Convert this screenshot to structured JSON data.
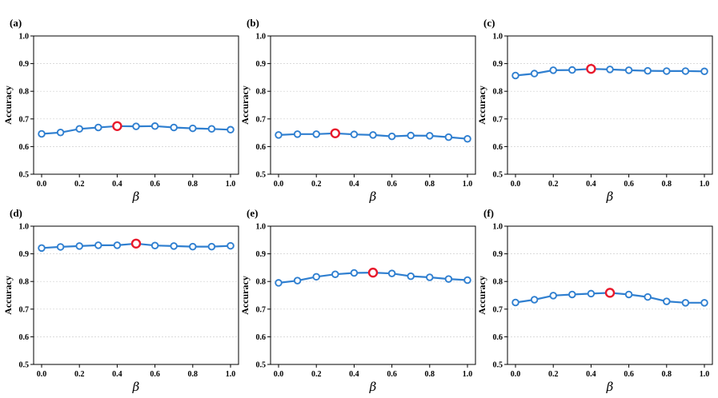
{
  "chart_data": [
    {
      "panel_label": "(a)",
      "type": "line",
      "xlabel": "β",
      "ylabel": "Accuracy",
      "ylim": [
        0.5,
        1.0
      ],
      "yticks": [
        "0.5",
        "0.6",
        "0.7",
        "0.8",
        "0.9",
        "1.0"
      ],
      "xticks": [
        "0.0",
        "0.2",
        "0.4",
        "0.6",
        "0.8",
        "1.0"
      ],
      "x": [
        0.0,
        0.1,
        0.2,
        0.3,
        0.4,
        0.5,
        0.6,
        0.7,
        0.8,
        0.9,
        1.0
      ],
      "values": [
        0.646,
        0.651,
        0.664,
        0.669,
        0.674,
        0.673,
        0.674,
        0.669,
        0.666,
        0.664,
        0.661
      ],
      "best_index": 4,
      "grid": "horizontal dotted"
    },
    {
      "panel_label": "(b)",
      "type": "line",
      "xlabel": "β",
      "ylabel": "Accuracy",
      "ylim": [
        0.5,
        1.0
      ],
      "yticks": [
        "0.5",
        "0.6",
        "0.7",
        "0.8",
        "0.9",
        "1.0"
      ],
      "xticks": [
        "0.0",
        "0.2",
        "0.4",
        "0.6",
        "0.8",
        "1.0"
      ],
      "x": [
        0.0,
        0.1,
        0.2,
        0.3,
        0.4,
        0.5,
        0.6,
        0.7,
        0.8,
        0.9,
        1.0
      ],
      "values": [
        0.642,
        0.645,
        0.645,
        0.648,
        0.644,
        0.642,
        0.637,
        0.64,
        0.639,
        0.634,
        0.628
      ],
      "best_index": 3,
      "grid": "horizontal dotted"
    },
    {
      "panel_label": "(c)",
      "type": "line",
      "xlabel": "β",
      "ylabel": "Accuracy",
      "ylim": [
        0.5,
        1.0
      ],
      "yticks": [
        "0.5",
        "0.6",
        "0.7",
        "0.8",
        "0.9",
        "1.0"
      ],
      "xticks": [
        "0.0",
        "0.2",
        "0.4",
        "0.6",
        "0.8",
        "1.0"
      ],
      "x": [
        0.0,
        0.1,
        0.2,
        0.3,
        0.4,
        0.5,
        0.6,
        0.7,
        0.8,
        0.9,
        1.0
      ],
      "values": [
        0.857,
        0.864,
        0.876,
        0.877,
        0.881,
        0.879,
        0.876,
        0.874,
        0.873,
        0.873,
        0.872
      ],
      "best_index": 4,
      "grid": "horizontal dotted"
    },
    {
      "panel_label": "(d)",
      "type": "line",
      "xlabel": "β",
      "ylabel": "Accuracy",
      "ylim": [
        0.5,
        1.0
      ],
      "yticks": [
        "0.5",
        "0.6",
        "0.7",
        "0.8",
        "0.9",
        "1.0"
      ],
      "xticks": [
        "0.0",
        "0.2",
        "0.4",
        "0.6",
        "0.8",
        "1.0"
      ],
      "x": [
        0.0,
        0.1,
        0.2,
        0.3,
        0.4,
        0.5,
        0.6,
        0.7,
        0.8,
        0.9,
        1.0
      ],
      "values": [
        0.921,
        0.925,
        0.928,
        0.931,
        0.931,
        0.937,
        0.93,
        0.928,
        0.926,
        0.926,
        0.929
      ],
      "best_index": 5,
      "grid": "horizontal dotted"
    },
    {
      "panel_label": "(e)",
      "type": "line",
      "xlabel": "β",
      "ylabel": "Accuracy",
      "ylim": [
        0.5,
        1.0
      ],
      "yticks": [
        "0.5",
        "0.6",
        "0.7",
        "0.8",
        "0.9",
        "1.0"
      ],
      "xticks": [
        "0.0",
        "0.2",
        "0.4",
        "0.6",
        "0.8",
        "1.0"
      ],
      "x": [
        0.0,
        0.1,
        0.2,
        0.3,
        0.4,
        0.5,
        0.6,
        0.7,
        0.8,
        0.9,
        1.0
      ],
      "values": [
        0.795,
        0.803,
        0.817,
        0.826,
        0.831,
        0.832,
        0.829,
        0.819,
        0.815,
        0.809,
        0.805
      ],
      "best_index": 5,
      "grid": "horizontal dotted"
    },
    {
      "panel_label": "(f)",
      "type": "line",
      "xlabel": "β",
      "ylabel": "Accuracy",
      "ylim": [
        0.5,
        1.0
      ],
      "yticks": [
        "0.5",
        "0.6",
        "0.7",
        "0.8",
        "0.9",
        "1.0"
      ],
      "xticks": [
        "0.0",
        "0.2",
        "0.4",
        "0.6",
        "0.8",
        "1.0"
      ],
      "x": [
        0.0,
        0.1,
        0.2,
        0.3,
        0.4,
        0.5,
        0.6,
        0.7,
        0.8,
        0.9,
        1.0
      ],
      "values": [
        0.724,
        0.734,
        0.749,
        0.753,
        0.756,
        0.759,
        0.753,
        0.744,
        0.728,
        0.723,
        0.723
      ],
      "best_index": 5,
      "grid": "horizontal dotted"
    }
  ],
  "colors": {
    "line": "#2f7fd0",
    "best_marker": "#e8192c",
    "grid": "#cfcfcf"
  }
}
